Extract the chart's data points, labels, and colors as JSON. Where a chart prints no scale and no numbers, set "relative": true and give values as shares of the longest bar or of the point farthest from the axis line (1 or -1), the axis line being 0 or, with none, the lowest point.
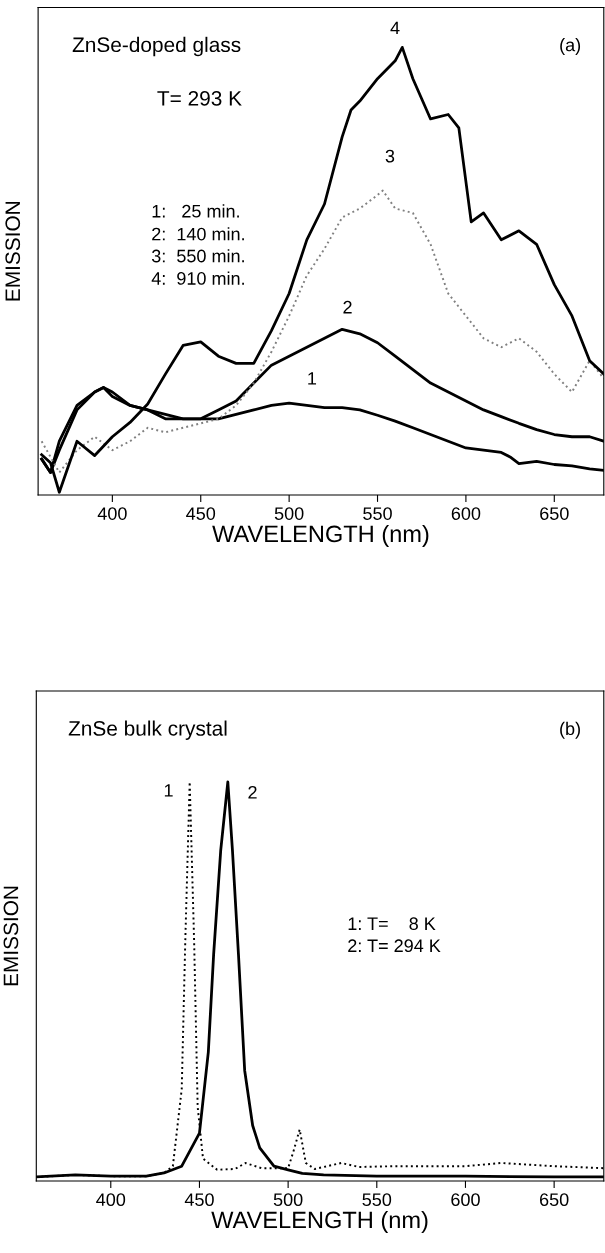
{
  "chart_data": [
    {
      "type": "line",
      "title": "ZnSe-doped glass",
      "subtitle": "T= 293 K",
      "xlabel": "WAVELENGTH (nm)",
      "ylabel": "EMISSION",
      "relative": true,
      "xlim": [
        358,
        678
      ],
      "xticks": [
        400,
        450,
        500,
        550,
        600,
        650
      ],
      "grid": false,
      "legend": false,
      "annotations": [
        "(a)",
        "1:   25 min.",
        "2:  140 min.",
        "3:  550 min.",
        "4:  910 min.",
        "1",
        "2",
        "3",
        "4"
      ],
      "series": [
        {
          "color": "#000000",
          "line_style": "solid",
          "x": [
            360,
            365,
            370,
            380,
            390,
            395,
            400,
            410,
            420,
            430,
            440,
            450,
            460,
            470,
            480,
            490,
            500,
            510,
            520,
            530,
            540,
            550,
            560,
            570,
            580,
            590,
            600,
            610,
            620,
            625,
            630,
            640,
            650,
            660,
            670,
            678
          ],
          "values": [
            0.08,
            0.05,
            0.12,
            0.2,
            0.23,
            0.24,
            0.22,
            0.2,
            0.19,
            0.18,
            0.17,
            0.17,
            0.17,
            0.18,
            0.19,
            0.2,
            0.205,
            0.2,
            0.195,
            0.195,
            0.19,
            0.178,
            0.165,
            0.15,
            0.135,
            0.12,
            0.105,
            0.1,
            0.095,
            0.085,
            0.07,
            0.075,
            0.068,
            0.065,
            0.058,
            0.055
          ]
        },
        {
          "color": "#000000",
          "line_style": "solid",
          "x": [
            360,
            365,
            370,
            380,
            390,
            395,
            400,
            410,
            420,
            430,
            440,
            450,
            460,
            470,
            480,
            490,
            500,
            510,
            520,
            530,
            540,
            550,
            560,
            570,
            580,
            590,
            600,
            610,
            620,
            630,
            640,
            650,
            660,
            670,
            678
          ],
          "values": [
            0.08,
            0.05,
            0.1,
            0.19,
            0.23,
            0.24,
            0.23,
            0.2,
            0.19,
            0.17,
            0.17,
            0.17,
            0.19,
            0.21,
            0.25,
            0.29,
            0.31,
            0.33,
            0.35,
            0.37,
            0.36,
            0.34,
            0.31,
            0.28,
            0.25,
            0.23,
            0.21,
            0.19,
            0.175,
            0.16,
            0.146,
            0.135,
            0.13,
            0.13,
            0.12
          ]
        },
        {
          "color": "#808080",
          "line_style": "dotted",
          "x": [
            360,
            370,
            380,
            390,
            400,
            410,
            420,
            430,
            440,
            450,
            460,
            470,
            480,
            490,
            500,
            510,
            520,
            530,
            540,
            550,
            553,
            560,
            570,
            580,
            590,
            600,
            610,
            620,
            630,
            640,
            650,
            660,
            670,
            678
          ],
          "values": [
            0.12,
            0.05,
            0.1,
            0.13,
            0.1,
            0.12,
            0.15,
            0.14,
            0.15,
            0.16,
            0.17,
            0.2,
            0.25,
            0.32,
            0.4,
            0.49,
            0.55,
            0.62,
            0.64,
            0.67,
            0.68,
            0.64,
            0.63,
            0.56,
            0.45,
            0.4,
            0.35,
            0.33,
            0.35,
            0.32,
            0.27,
            0.23,
            0.3,
            0.26
          ]
        },
        {
          "color": "#000000",
          "line_style": "solid",
          "x": [
            360,
            365,
            370,
            380,
            390,
            400,
            410,
            420,
            430,
            440,
            450,
            460,
            470,
            480,
            490,
            500,
            510,
            520,
            530,
            535,
            540,
            550,
            560,
            564,
            570,
            580,
            590,
            596,
            603,
            610,
            620,
            630,
            640,
            650,
            660,
            670,
            678
          ],
          "values": [
            0.09,
            0.072,
            0.006,
            0.12,
            0.088,
            0.13,
            0.162,
            0.203,
            0.27,
            0.334,
            0.342,
            0.31,
            0.294,
            0.294,
            0.367,
            0.45,
            0.57,
            0.65,
            0.8,
            0.86,
            0.88,
            0.93,
            0.97,
            1.0,
            0.93,
            0.84,
            0.85,
            0.82,
            0.61,
            0.63,
            0.57,
            0.59,
            0.56,
            0.47,
            0.4,
            0.3,
            0.27
          ]
        }
      ]
    },
    {
      "type": "line",
      "title": "ZnSe bulk crystal",
      "xlabel": "WAVELENGTH (nm)",
      "ylabel": "EMISSION",
      "relative": true,
      "xlim": [
        358,
        678
      ],
      "xticks": [
        400,
        450,
        500,
        550,
        600,
        650
      ],
      "grid": false,
      "legend": false,
      "annotations": [
        "(b)",
        "1: T=    8 K",
        "2: T= 294 K",
        "1",
        "2"
      ],
      "series": [
        {
          "color": "#000000",
          "line_style": "dotted",
          "x": [
            358,
            380,
            400,
            420,
            430,
            435,
            440,
            442,
            444.5,
            447,
            449,
            452,
            460,
            470,
            476,
            485,
            500,
            503,
            506.5,
            510,
            515,
            530,
            540,
            560,
            600,
            620,
            650,
            678
          ],
          "values": [
            0.01,
            0.015,
            0.012,
            0.012,
            0.02,
            0.037,
            0.23,
            0.6,
            1.0,
            0.6,
            0.185,
            0.056,
            0.028,
            0.03,
            0.045,
            0.032,
            0.032,
            0.074,
            0.129,
            0.045,
            0.03,
            0.045,
            0.035,
            0.037,
            0.037,
            0.045,
            0.037,
            0.032
          ]
        },
        {
          "color": "#000000",
          "line_style": "solid",
          "x": [
            358,
            380,
            400,
            420,
            430,
            440,
            450,
            455,
            458,
            462,
            466,
            468.6,
            472,
            475.5,
            480,
            484,
            492,
            500,
            508,
            520,
            550,
            600,
            650,
            678
          ],
          "values": [
            0.01,
            0.015,
            0.012,
            0.012,
            0.02,
            0.037,
            0.12,
            0.323,
            0.568,
            0.829,
            1.0,
            0.829,
            0.568,
            0.277,
            0.139,
            0.083,
            0.037,
            0.028,
            0.019,
            0.015,
            0.012,
            0.012,
            0.01,
            0.01
          ]
        }
      ]
    }
  ]
}
